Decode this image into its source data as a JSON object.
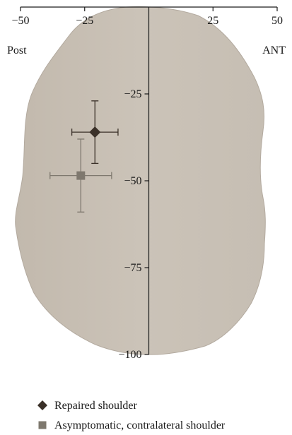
{
  "chart_data": {
    "type": "scatter",
    "title": "",
    "xlabel": "",
    "ylabel": "",
    "x_left_label": "Post",
    "x_right_label": "ANT",
    "xlim": [
      -50,
      50
    ],
    "ylim": [
      -100,
      0
    ],
    "x_ticks": [
      -50,
      -25,
      25,
      50
    ],
    "y_ticks": [
      -25,
      -50,
      -75,
      -100
    ],
    "x_tick_labels": [
      "−50",
      "−25",
      "25",
      "50"
    ],
    "y_tick_labels": [
      "−25",
      "−50",
      "−75",
      "−100"
    ],
    "grid": false,
    "legend_position": "bottom-left",
    "background": "shoulder-glenoid-shape",
    "series": [
      {
        "name": "Repaired shoulder",
        "marker": "diamond",
        "color": "#3a3028",
        "x": -21,
        "y": -36,
        "x_err": 9,
        "y_err": 9
      },
      {
        "name": "Asymptomatic, contralateral shoulder",
        "marker": "square",
        "color": "#7e786e",
        "x": -26.5,
        "y": -48.5,
        "x_err": 12,
        "y_err": 10.5
      }
    ]
  }
}
